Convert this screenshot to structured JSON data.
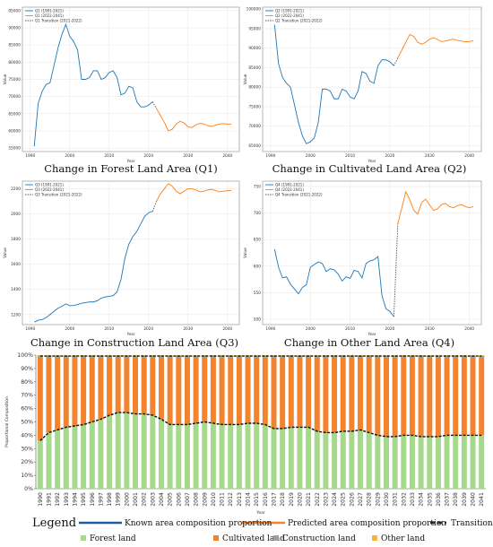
{
  "chart_data": [
    {
      "id": "q1",
      "type": "line",
      "title": "Change in Forest Land Area (Q1)",
      "xlabel": "Year",
      "ylabel": "Value",
      "xlim": [
        1988,
        2043
      ],
      "ylim": [
        54000,
        96000
      ],
      "xticks": [
        1990,
        2000,
        2010,
        2020,
        2030,
        2040
      ],
      "yticks": [
        55000,
        60000,
        65000,
        70000,
        75000,
        80000,
        85000,
        90000,
        95000
      ],
      "legend_position": "top-left",
      "grid": true,
      "series": [
        {
          "name": "Q1 (1991-2021)",
          "color": "#1f77b4",
          "dashed": false,
          "x": [
            1991,
            1992,
            1993,
            1994,
            1995,
            1996,
            1997,
            1998,
            1999,
            2000,
            2001,
            2002,
            2003,
            2004,
            2005,
            2006,
            2007,
            2008,
            2009,
            2010,
            2011,
            2012,
            2013,
            2014,
            2015,
            2016,
            2017,
            2018,
            2019,
            2020,
            2021
          ],
          "y": [
            55500,
            68000,
            71500,
            73500,
            74000,
            79000,
            84000,
            88000,
            91000,
            87500,
            86000,
            83500,
            75000,
            75000,
            75500,
            77500,
            77500,
            75000,
            75500,
            77000,
            77500,
            75500,
            70500,
            71000,
            73000,
            72500,
            68500,
            67000,
            67000,
            67500,
            68500
          ]
        },
        {
          "name": "Q1 Transition (2021-2022)",
          "color": "#555555",
          "dashed": true,
          "x": [
            2021,
            2022
          ],
          "y": [
            68500,
            66500
          ]
        },
        {
          "name": "Q1 (2022-2041)",
          "color": "#ff7f0e",
          "dashed": false,
          "x": [
            2022,
            2023,
            2024,
            2025,
            2026,
            2027,
            2028,
            2029,
            2030,
            2031,
            2032,
            2033,
            2034,
            2035,
            2036,
            2037,
            2038,
            2039,
            2040,
            2041
          ],
          "y": [
            66500,
            64500,
            62500,
            60000,
            60500,
            62000,
            62800,
            62300,
            61200,
            61000,
            61800,
            62200,
            62000,
            61500,
            61300,
            61700,
            62000,
            62100,
            62000,
            61900
          ]
        }
      ]
    },
    {
      "id": "q2",
      "type": "line",
      "title": "Change in Cultivated Land Area (Q2)",
      "xlabel": "Year",
      "ylabel": "Value",
      "xlim": [
        1988,
        2043
      ],
      "ylim": [
        63500,
        100500
      ],
      "xticks": [
        1990,
        2000,
        2010,
        2020,
        2030,
        2040
      ],
      "yticks": [
        65000,
        70000,
        75000,
        80000,
        85000,
        90000,
        95000,
        100000
      ],
      "legend_position": "top-left",
      "grid": true,
      "series": [
        {
          "name": "Q2 (1991-2021)",
          "color": "#1f77b4",
          "dashed": false,
          "x": [
            1991,
            1992,
            1993,
            1994,
            1995,
            1996,
            1997,
            1998,
            1999,
            2000,
            2001,
            2002,
            2003,
            2004,
            2005,
            2006,
            2007,
            2008,
            2009,
            2010,
            2011,
            2012,
            2013,
            2014,
            2015,
            2016,
            2017,
            2018,
            2019,
            2020,
            2021
          ],
          "y": [
            96000,
            86000,
            82500,
            81000,
            80000,
            75500,
            71000,
            67500,
            65500,
            66000,
            67000,
            71000,
            79500,
            79500,
            79000,
            77000,
            77000,
            79500,
            79000,
            77500,
            77000,
            79000,
            84000,
            83500,
            81500,
            81000,
            85500,
            87000,
            87000,
            86500,
            85500
          ]
        },
        {
          "name": "Q2 Transition (2021-2022)",
          "color": "#555555",
          "dashed": true,
          "x": [
            2021,
            2022
          ],
          "y": [
            85500,
            87500
          ]
        },
        {
          "name": "Q2 (2022-2041)",
          "color": "#ff7f0e",
          "dashed": false,
          "x": [
            2022,
            2023,
            2024,
            2025,
            2026,
            2027,
            2028,
            2029,
            2030,
            2031,
            2032,
            2033,
            2034,
            2035,
            2036,
            2037,
            2038,
            2039,
            2040,
            2041
          ],
          "y": [
            87500,
            89500,
            91500,
            93500,
            93000,
            91500,
            91000,
            91500,
            92300,
            92700,
            92200,
            91700,
            91800,
            92100,
            92300,
            92000,
            91800,
            91600,
            91700,
            91900
          ]
        }
      ]
    },
    {
      "id": "q3",
      "type": "line",
      "title": "Change in Construction Land Area (Q3)",
      "xlabel": "Year",
      "ylabel": "Value",
      "xlim": [
        1988,
        2043
      ],
      "ylim": [
        1120,
        2260
      ],
      "xticks": [
        1990,
        2000,
        2010,
        2020,
        2030,
        2040
      ],
      "yticks": [
        1200,
        1400,
        1600,
        1800,
        2000,
        2200
      ],
      "legend_position": "top-left",
      "grid": true,
      "series": [
        {
          "name": "Q3 (1991-2021)",
          "color": "#1f77b4",
          "dashed": false,
          "x": [
            1991,
            1992,
            1993,
            1994,
            1995,
            1996,
            1997,
            1998,
            1999,
            2000,
            2001,
            2002,
            2003,
            2004,
            2005,
            2006,
            2007,
            2008,
            2009,
            2010,
            2011,
            2012,
            2013,
            2014,
            2015,
            2016,
            2017,
            2018,
            2019,
            2020,
            2021
          ],
          "y": [
            1140,
            1155,
            1160,
            1175,
            1200,
            1225,
            1250,
            1265,
            1285,
            1270,
            1272,
            1280,
            1290,
            1295,
            1300,
            1300,
            1310,
            1330,
            1340,
            1345,
            1350,
            1380,
            1480,
            1650,
            1760,
            1820,
            1860,
            1920,
            1980,
            2010,
            2020
          ]
        },
        {
          "name": "Q3 Transition (2021-2022)",
          "color": "#555555",
          "dashed": true,
          "x": [
            2021,
            2022
          ],
          "y": [
            2020,
            2100
          ]
        },
        {
          "name": "Q3 (2022-2041)",
          "color": "#ff7f0e",
          "dashed": false,
          "x": [
            2022,
            2023,
            2024,
            2025,
            2026,
            2027,
            2028,
            2029,
            2030,
            2031,
            2032,
            2033,
            2034,
            2035,
            2036,
            2037,
            2038,
            2039,
            2040,
            2041
          ],
          "y": [
            2100,
            2160,
            2200,
            2240,
            2220,
            2180,
            2160,
            2180,
            2200,
            2200,
            2190,
            2175,
            2180,
            2190,
            2195,
            2185,
            2175,
            2180,
            2185,
            2185
          ]
        }
      ]
    },
    {
      "id": "q4",
      "type": "line",
      "title": "Change in Other Land Area (Q4)",
      "xlabel": "Year",
      "ylabel": "Value",
      "xlim": [
        1988,
        2043
      ],
      "ylim": [
        490,
        760
      ],
      "xticks": [
        1990,
        2000,
        2010,
        2020,
        2030,
        2040
      ],
      "yticks": [
        500,
        550,
        600,
        650,
        700,
        750
      ],
      "legend_position": "top-left",
      "grid": true,
      "series": [
        {
          "name": "Q4 (1991-2021)",
          "color": "#1f77b4",
          "dashed": false,
          "x": [
            1991,
            1992,
            1993,
            1994,
            1995,
            1996,
            1997,
            1998,
            1999,
            2000,
            2001,
            2002,
            2003,
            2004,
            2005,
            2006,
            2007,
            2008,
            2009,
            2010,
            2011,
            2012,
            2013,
            2014,
            2015,
            2016,
            2017,
            2018,
            2019,
            2020,
            2021
          ],
          "y": [
            632,
            598,
            578,
            580,
            566,
            557,
            548,
            560,
            565,
            598,
            603,
            608,
            605,
            590,
            595,
            593,
            585,
            572,
            580,
            577,
            592,
            590,
            578,
            605,
            610,
            612,
            618,
            545,
            520,
            515,
            505
          ]
        },
        {
          "name": "Q4 Transition (2021-2022)",
          "color": "#555555",
          "dashed": true,
          "x": [
            2021,
            2022
          ],
          "y": [
            505,
            680
          ]
        },
        {
          "name": "Q4 (2022-2041)",
          "color": "#ff7f0e",
          "dashed": false,
          "x": [
            2022,
            2023,
            2024,
            2025,
            2026,
            2027,
            2028,
            2029,
            2030,
            2031,
            2032,
            2033,
            2034,
            2035,
            2036,
            2037,
            2038,
            2039,
            2040,
            2041
          ],
          "y": [
            680,
            710,
            740,
            725,
            705,
            698,
            720,
            726,
            715,
            705,
            708,
            716,
            718,
            712,
            710,
            714,
            716,
            712,
            710,
            712
          ]
        }
      ]
    },
    {
      "id": "composition",
      "type": "bar",
      "stacked": true,
      "xlabel": "Year",
      "ylabel": "Proportional Composition",
      "ylim": [
        0,
        100
      ],
      "yticks": [
        "0%",
        "10%",
        "20%",
        "30%",
        "40%",
        "50%",
        "60%",
        "70%",
        "80%",
        "90%",
        "100%"
      ],
      "categories": [
        "1990",
        "1991",
        "1992",
        "1993",
        "1994",
        "1995",
        "1996",
        "1997",
        "1998",
        "1999",
        "2000",
        "2001",
        "2002",
        "2003",
        "2004",
        "2005",
        "2006",
        "2007",
        "2008",
        "2009",
        "2010",
        "2011",
        "2012",
        "2013",
        "2014",
        "2015",
        "2016",
        "2017",
        "2018",
        "2019",
        "2020",
        "2021",
        "2022",
        "2023",
        "2024",
        "2025",
        "2026",
        "2027",
        "2028",
        "2029",
        "2030",
        "2031",
        "2032",
        "2033",
        "2034",
        "2035",
        "2036",
        "2037",
        "2038",
        "2039",
        "2040",
        "2041"
      ],
      "series": [
        {
          "name": "Forest land",
          "color": "#a6d98c",
          "values": [
            36,
            42,
            44,
            46,
            47,
            48,
            50,
            52,
            55,
            57,
            57,
            56,
            56,
            55,
            52,
            48,
            48,
            48,
            49,
            50,
            49,
            48,
            48,
            48,
            49,
            49,
            48,
            45,
            45,
            46,
            46,
            46,
            43,
            42,
            42,
            43,
            43,
            44,
            42,
            40,
            39,
            39,
            40,
            40,
            39,
            39,
            39,
            40,
            40,
            40,
            40,
            40
          ]
        },
        {
          "name": "Cultivated land",
          "color": "#f4832e",
          "values": [
            62,
            56,
            54,
            52,
            51,
            50,
            48,
            46,
            43,
            41,
            41,
            42,
            42,
            43,
            46,
            50,
            50,
            50,
            49,
            48,
            49,
            50,
            50,
            50,
            49,
            49,
            50,
            53,
            53,
            52,
            52,
            52,
            55,
            56,
            56,
            55,
            55,
            54,
            56,
            58,
            59,
            59,
            58,
            58,
            59,
            59,
            59,
            58,
            58,
            58,
            58,
            58
          ]
        },
        {
          "name": "Construction land",
          "color": "#9e9e9e",
          "values": [
            1.3,
            1.3,
            1.3,
            1.3,
            1.3,
            1.3,
            1.3,
            1.3,
            1.3,
            1.3,
            1.3,
            1.3,
            1.3,
            1.3,
            1.3,
            1.3,
            1.3,
            1.3,
            1.3,
            1.3,
            1.3,
            1.3,
            1.3,
            1.3,
            1.3,
            1.3,
            1.3,
            1.3,
            1.3,
            1.3,
            1.3,
            1.3,
            1.3,
            1.3,
            1.3,
            1.3,
            1.3,
            1.3,
            1.3,
            1.3,
            1.3,
            1.3,
            1.3,
            1.3,
            1.3,
            1.3,
            1.3,
            1.3,
            1.3,
            1.3,
            1.3,
            1.3
          ]
        },
        {
          "name": "Other land",
          "color": "#f3b43a",
          "values": [
            0.7,
            0.7,
            0.7,
            0.7,
            0.7,
            0.7,
            0.7,
            0.7,
            0.7,
            0.7,
            0.7,
            0.7,
            0.7,
            0.7,
            0.7,
            0.7,
            0.7,
            0.7,
            0.7,
            0.7,
            0.7,
            0.7,
            0.7,
            0.7,
            0.7,
            0.7,
            0.7,
            0.7,
            0.7,
            0.7,
            0.7,
            0.7,
            0.7,
            0.7,
            0.7,
            0.7,
            0.7,
            0.7,
            0.7,
            0.7,
            0.7,
            0.7,
            0.7,
            0.7,
            0.7,
            0.7,
            0.7,
            0.7,
            0.7,
            0.7,
            0.7,
            0.7
          ]
        }
      ],
      "line_series": [
        {
          "name": "Known area composition proportion",
          "color": "#1f5fa0",
          "style": "solid"
        },
        {
          "name": "Predicted area composition proportion",
          "color": "#f4832e",
          "style": "solid"
        },
        {
          "name": "Transition",
          "color": "#333333",
          "style": "dashed"
        }
      ],
      "legend_title": "Legend",
      "legend_position": "bottom"
    }
  ]
}
